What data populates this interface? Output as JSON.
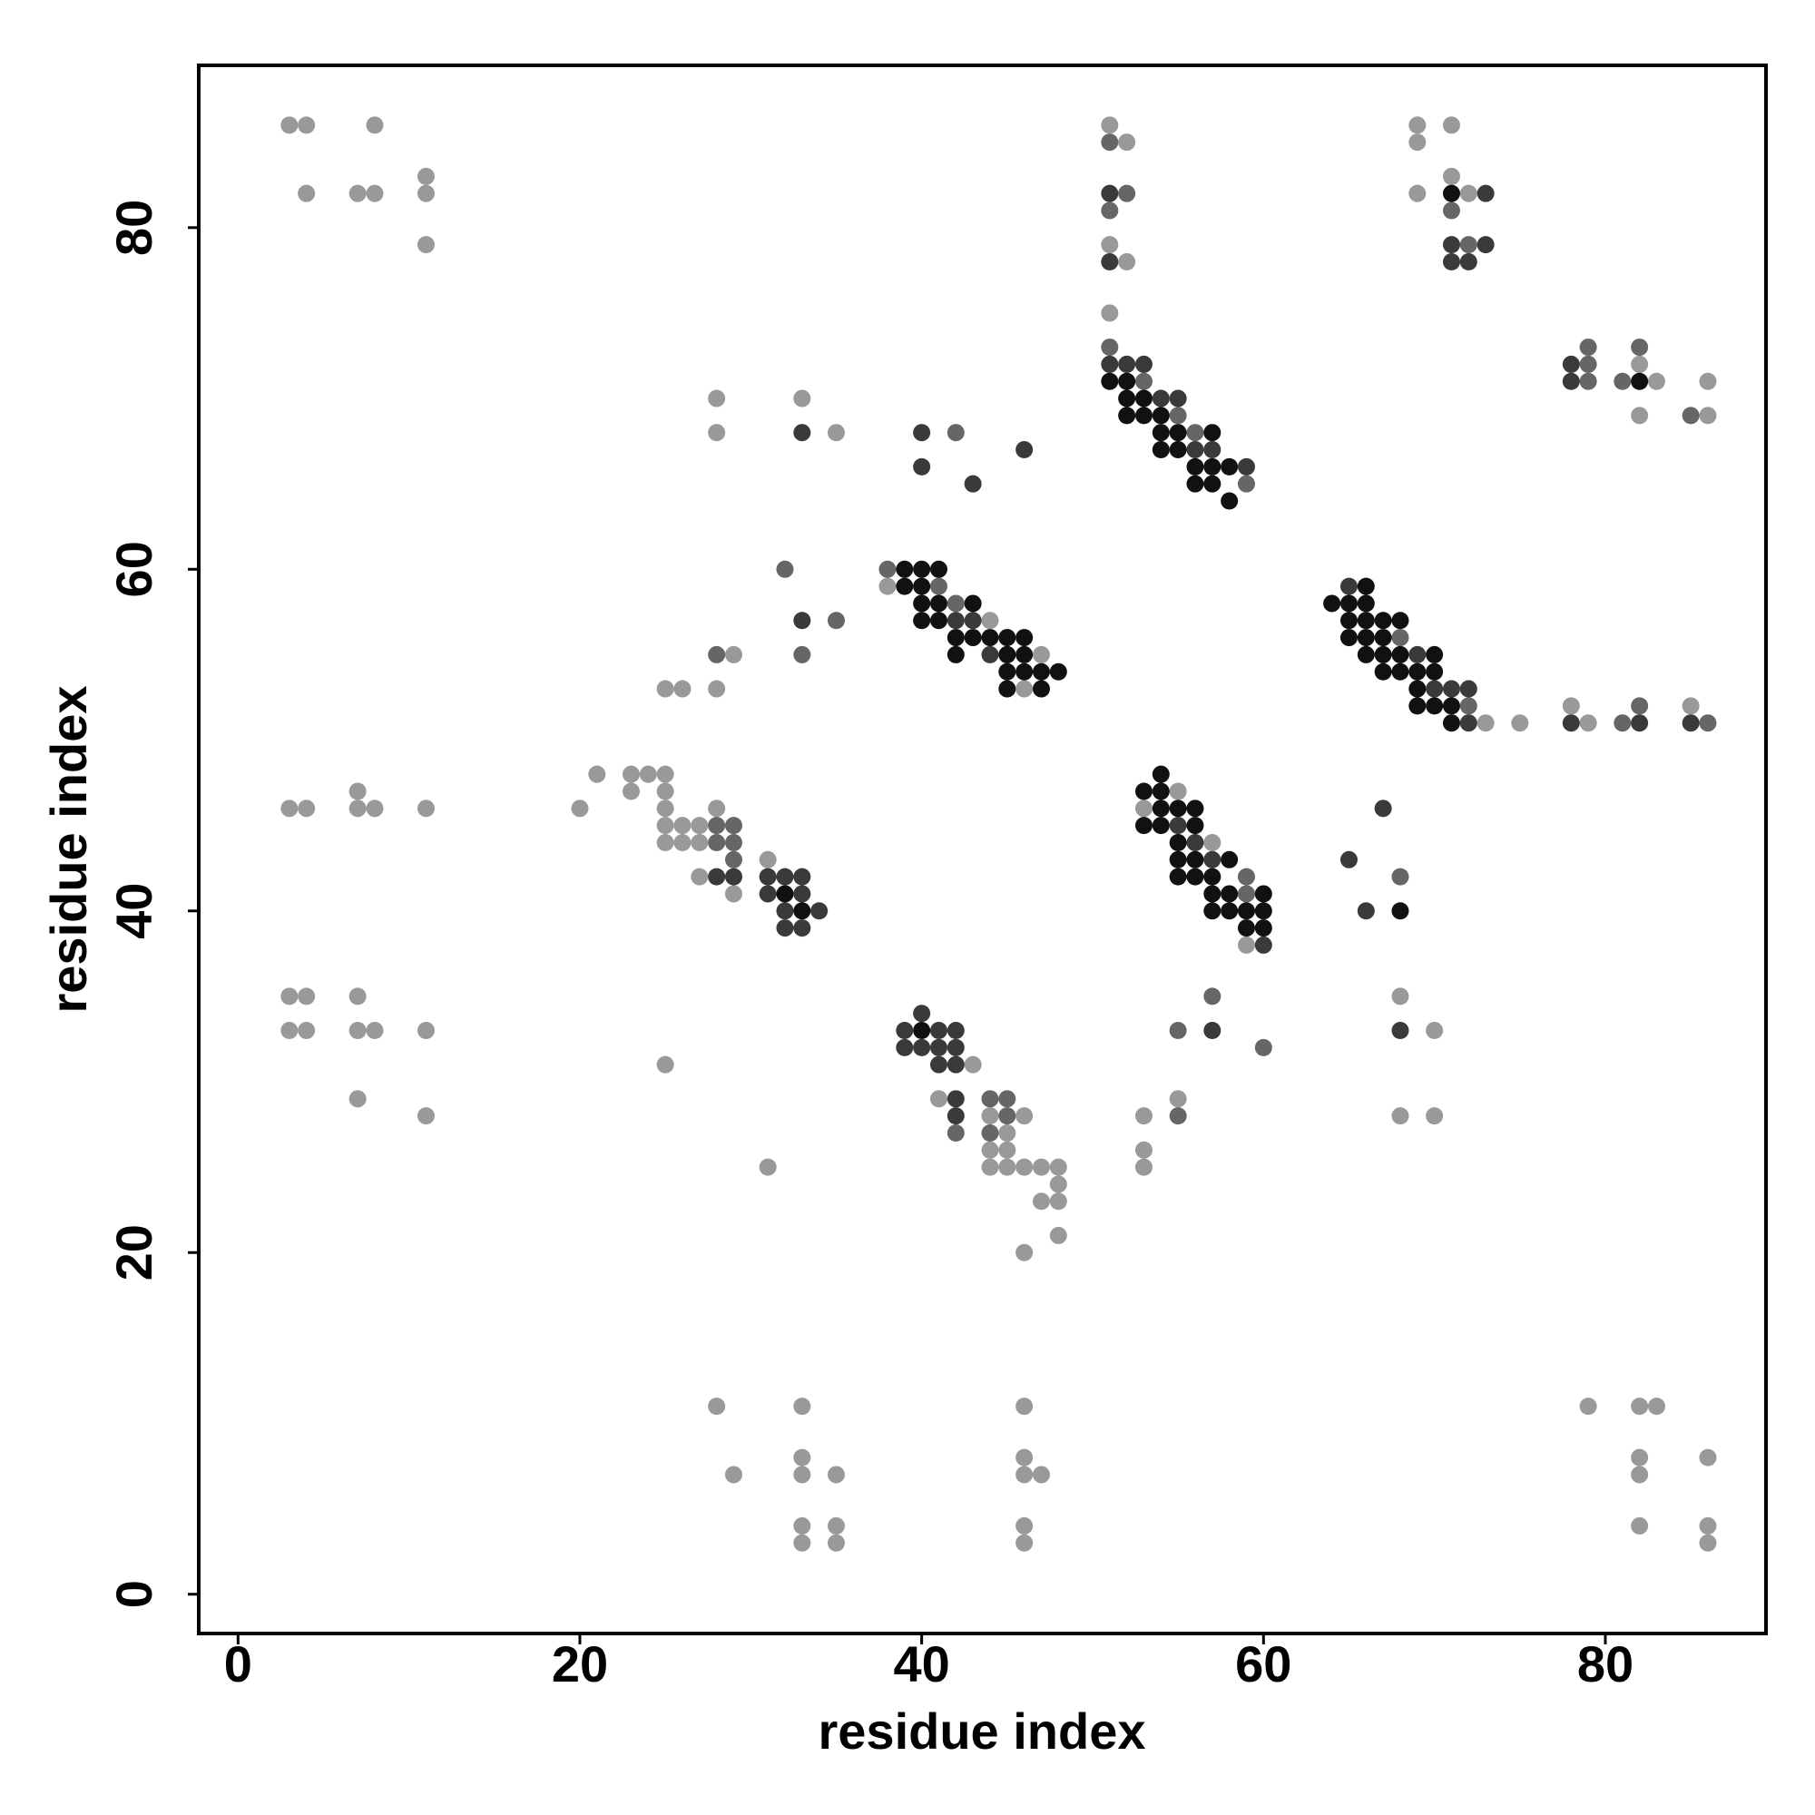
{
  "chart_data": {
    "type": "scatter",
    "xlabel": "residue index",
    "ylabel": "residue index",
    "xlim": [
      -2.3,
      89.4
    ],
    "ylim": [
      -2.3,
      89.5
    ],
    "xticks": [
      0,
      20,
      40,
      60,
      80
    ],
    "yticks": [
      0,
      20,
      40,
      60,
      80
    ],
    "series": [
      {
        "color": "#999999",
        "x": [
          3,
          4,
          8,
          51,
          69,
          71,
          52,
          69,
          11,
          71,
          4,
          7,
          8,
          11,
          69,
          72,
          11,
          51,
          52,
          51,
          82,
          83,
          86,
          28,
          33,
          86,
          82,
          28,
          35,
          38,
          44,
          29,
          47,
          25,
          26,
          28,
          46,
          78,
          85,
          73,
          75,
          79,
          21,
          23,
          24,
          25,
          7,
          23,
          25,
          55,
          3,
          4,
          7,
          8,
          11,
          20,
          25,
          28,
          53,
          25,
          26,
          27,
          25,
          26,
          27,
          57,
          31,
          27,
          29,
          59,
          3,
          4,
          7,
          68,
          3,
          4,
          7,
          8,
          11,
          70,
          25,
          43,
          7,
          41,
          55,
          11,
          44,
          46,
          53,
          68,
          70,
          45,
          44,
          45,
          53,
          31,
          44,
          45,
          46,
          47,
          48,
          53,
          48,
          47,
          48,
          48,
          46,
          28,
          33,
          46,
          79,
          82,
          83,
          33,
          46,
          82,
          86,
          29,
          33,
          35,
          46,
          47,
          82,
          33,
          35,
          46,
          82,
          86,
          33,
          35,
          46,
          86
        ],
        "y": [
          86,
          86,
          86,
          86,
          86,
          86,
          85,
          85,
          83,
          83,
          82,
          82,
          82,
          82,
          82,
          82,
          79,
          79,
          78,
          75,
          72,
          71,
          71,
          70,
          70,
          69,
          69,
          68,
          68,
          59,
          57,
          55,
          55,
          53,
          53,
          53,
          53,
          52,
          52,
          51,
          51,
          51,
          48,
          48,
          48,
          48,
          47,
          47,
          47,
          47,
          46,
          46,
          46,
          46,
          46,
          46,
          46,
          46,
          46,
          45,
          45,
          45,
          44,
          44,
          44,
          44,
          43,
          42,
          41,
          38,
          35,
          35,
          35,
          35,
          33,
          33,
          33,
          33,
          33,
          33,
          31,
          31,
          29,
          29,
          29,
          28,
          28,
          28,
          28,
          28,
          28,
          27,
          26,
          26,
          26,
          25,
          25,
          25,
          25,
          25,
          25,
          25,
          24,
          23,
          23,
          21,
          20,
          11,
          11,
          11,
          11,
          11,
          11,
          8,
          8,
          8,
          8,
          7,
          7,
          7,
          7,
          7,
          7,
          4,
          4,
          4,
          4,
          4,
          3,
          3,
          3,
          3
        ]
      },
      {
        "color": "#666666",
        "x": [
          51,
          52,
          51,
          71,
          72,
          51,
          79,
          82,
          79,
          53,
          79,
          81,
          55,
          85,
          42,
          56,
          59,
          32,
          38,
          41,
          42,
          35,
          68,
          28,
          33,
          72,
          82,
          81,
          86,
          28,
          29,
          28,
          29,
          29,
          59,
          68,
          59,
          57,
          55,
          60,
          44,
          45,
          45,
          55,
          42,
          44
        ],
        "y": [
          85,
          82,
          81,
          81,
          79,
          73,
          73,
          73,
          72,
          71,
          71,
          71,
          69,
          69,
          68,
          68,
          65,
          60,
          60,
          59,
          58,
          57,
          56,
          55,
          55,
          52,
          52,
          51,
          51,
          45,
          45,
          44,
          44,
          43,
          42,
          42,
          41,
          35,
          33,
          32,
          29,
          29,
          28,
          28,
          27,
          27
        ]
      },
      {
        "color": "#3a3a3a",
        "x": [
          51,
          73,
          71,
          73,
          51,
          71,
          72,
          51,
          52,
          53,
          78,
          78,
          54,
          55,
          33,
          40,
          46,
          56,
          57,
          40,
          59,
          43,
          65,
          33,
          42,
          43,
          44,
          45,
          69,
          70,
          71,
          72,
          72,
          78,
          82,
          85,
          67,
          55,
          56,
          57,
          65,
          28,
          29,
          31,
          32,
          33,
          31,
          33,
          32,
          34,
          66,
          32,
          33,
          60,
          40,
          39,
          41,
          42,
          57,
          68,
          39,
          40,
          41,
          42,
          41,
          42,
          42,
          42
        ],
        "y": [
          82,
          82,
          79,
          79,
          78,
          78,
          78,
          72,
          72,
          72,
          72,
          71,
          70,
          70,
          68,
          68,
          67,
          67,
          67,
          66,
          66,
          65,
          59,
          57,
          57,
          57,
          55,
          55,
          55,
          53,
          53,
          53,
          51,
          51,
          51,
          51,
          46,
          45,
          44,
          43,
          43,
          42,
          42,
          42,
          42,
          42,
          41,
          41,
          40,
          40,
          40,
          39,
          39,
          38,
          34,
          33,
          33,
          33,
          33,
          33,
          32,
          32,
          32,
          32,
          31,
          31,
          29,
          28
        ]
      },
      {
        "color": "#111111",
        "x": [
          71,
          51,
          52,
          82,
          52,
          53,
          52,
          53,
          54,
          54,
          55,
          57,
          54,
          55,
          56,
          57,
          58,
          56,
          57,
          58,
          39,
          40,
          41,
          39,
          40,
          66,
          40,
          41,
          43,
          64,
          65,
          66,
          40,
          41,
          65,
          66,
          67,
          68,
          42,
          43,
          44,
          45,
          46,
          65,
          66,
          67,
          42,
          45,
          46,
          66,
          67,
          68,
          70,
          45,
          46,
          47,
          48,
          67,
          68,
          69,
          70,
          45,
          47,
          69,
          69,
          70,
          71,
          71,
          54,
          53,
          54,
          54,
          55,
          56,
          53,
          54,
          56,
          55,
          55,
          56,
          58,
          55,
          56,
          57,
          32,
          57,
          58,
          60,
          33,
          57,
          58,
          59,
          60,
          68,
          59,
          60,
          40
        ],
        "y": [
          82,
          71,
          71,
          71,
          70,
          70,
          69,
          69,
          69,
          68,
          68,
          68,
          67,
          67,
          66,
          66,
          66,
          65,
          65,
          64,
          60,
          60,
          60,
          59,
          59,
          59,
          58,
          58,
          58,
          58,
          58,
          58,
          57,
          57,
          57,
          57,
          57,
          57,
          56,
          56,
          56,
          56,
          56,
          56,
          56,
          56,
          55,
          55,
          55,
          55,
          55,
          55,
          55,
          54,
          54,
          54,
          54,
          54,
          54,
          54,
          54,
          53,
          53,
          53,
          52,
          52,
          52,
          51,
          48,
          47,
          47,
          46,
          46,
          46,
          45,
          45,
          45,
          44,
          43,
          43,
          43,
          42,
          42,
          42,
          41,
          41,
          41,
          41,
          40,
          40,
          40,
          40,
          40,
          40,
          39,
          39,
          33
        ]
      }
    ]
  }
}
